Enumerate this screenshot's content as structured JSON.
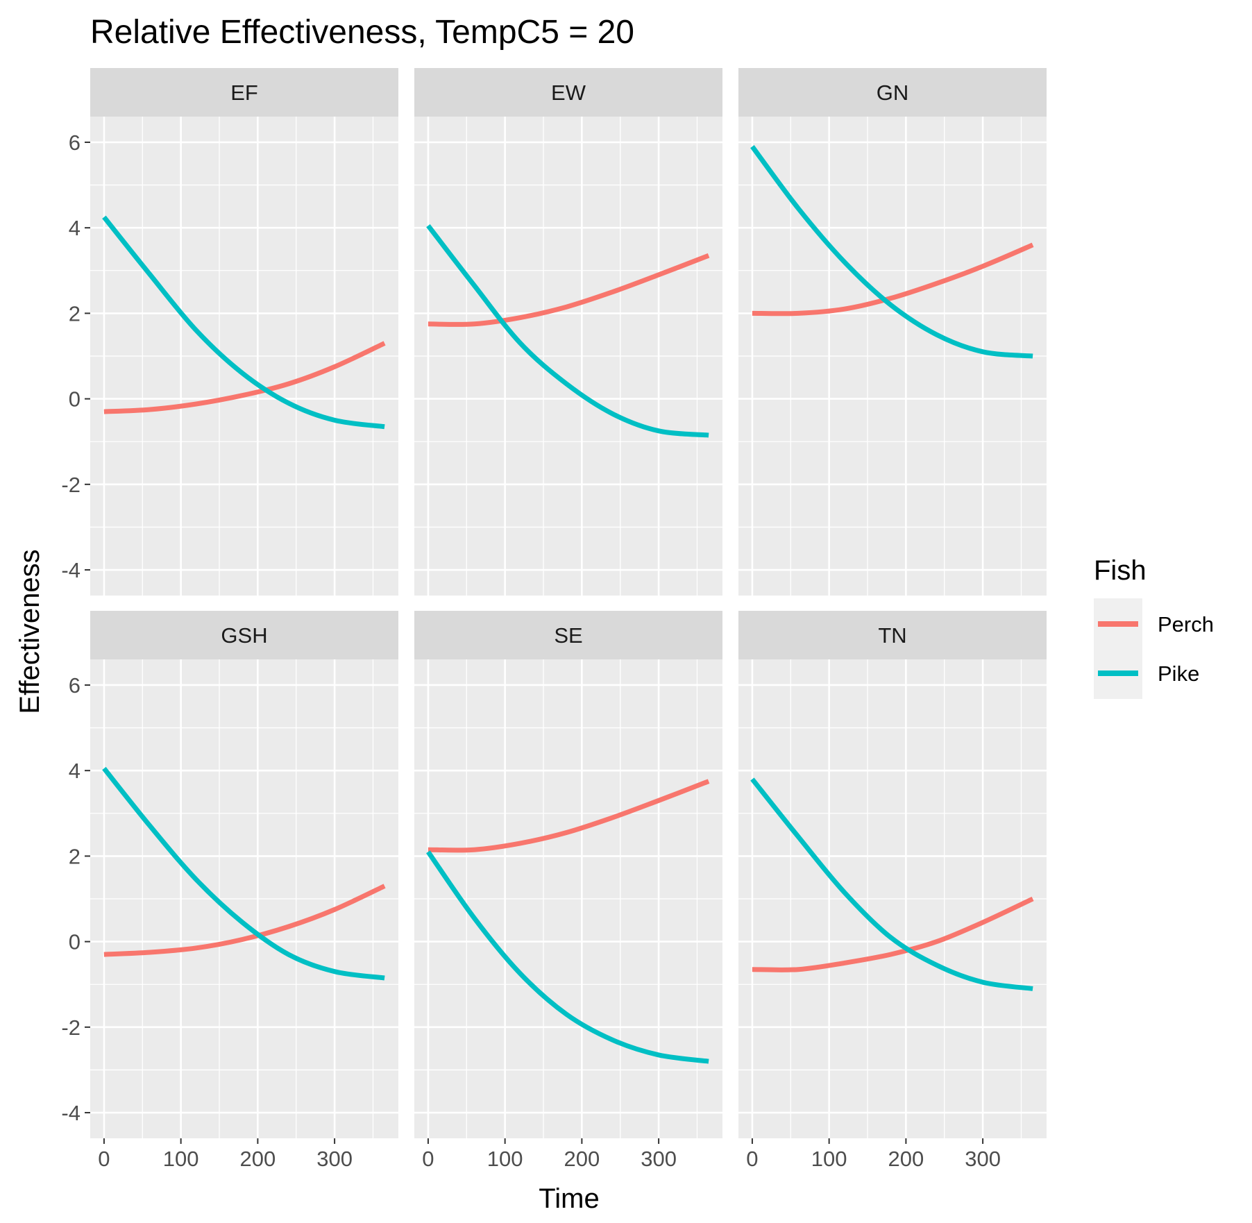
{
  "chart_data": {
    "type": "line",
    "title": "Relative Effectiveness, TempC5 = 20",
    "xlabel": "Time",
    "ylabel": "Effectiveness",
    "xlim": [
      -18,
      383
    ],
    "ylim": [
      -4.6,
      6.6
    ],
    "x_ticks": [
      0,
      100,
      200,
      300
    ],
    "y_ticks": [
      -4,
      -2,
      0,
      2,
      4,
      6
    ],
    "grid": true,
    "legend": {
      "title": "Fish",
      "position": "right",
      "entries": [
        {
          "label": "Perch",
          "color": "#F8766D"
        },
        {
          "label": "Pike",
          "color": "#00BFC4"
        }
      ]
    },
    "colors": {
      "Perch": "#F8766D",
      "Pike": "#00BFC4"
    },
    "panels": [
      {
        "label": "EF",
        "x": [
          0,
          60,
          120,
          180,
          240,
          300,
          365
        ],
        "series": [
          {
            "name": "Perch",
            "values": [
              -0.3,
              -0.25,
              -0.12,
              0.08,
              0.35,
              0.75,
              1.3
            ]
          },
          {
            "name": "Pike",
            "values": [
              4.25,
              2.9,
              1.6,
              0.6,
              -0.1,
              -0.5,
              -0.65
            ]
          }
        ]
      },
      {
        "label": "EW",
        "x": [
          0,
          60,
          120,
          180,
          240,
          300,
          365
        ],
        "series": [
          {
            "name": "Perch",
            "values": [
              1.75,
              1.75,
              1.9,
              2.15,
              2.5,
              2.9,
              3.35
            ]
          },
          {
            "name": "Pike",
            "values": [
              4.05,
              2.65,
              1.3,
              0.35,
              -0.35,
              -0.75,
              -0.85
            ]
          }
        ]
      },
      {
        "label": "GN",
        "x": [
          0,
          60,
          120,
          180,
          240,
          300,
          365
        ],
        "series": [
          {
            "name": "Perch",
            "values": [
              2.0,
              2.0,
              2.1,
              2.35,
              2.7,
              3.1,
              3.6
            ]
          },
          {
            "name": "Pike",
            "values": [
              5.9,
              4.45,
              3.2,
              2.2,
              1.5,
              1.1,
              1.0
            ]
          }
        ]
      },
      {
        "label": "GSH",
        "x": [
          0,
          60,
          120,
          180,
          240,
          300,
          365
        ],
        "series": [
          {
            "name": "Perch",
            "values": [
              -0.3,
              -0.25,
              -0.15,
              0.05,
              0.35,
              0.75,
              1.3
            ]
          },
          {
            "name": "Pike",
            "values": [
              4.05,
              2.7,
              1.45,
              0.45,
              -0.3,
              -0.7,
              -0.85
            ]
          }
        ]
      },
      {
        "label": "SE",
        "x": [
          0,
          60,
          120,
          180,
          240,
          300,
          365
        ],
        "series": [
          {
            "name": "Perch",
            "values": [
              2.15,
              2.15,
              2.3,
              2.55,
              2.9,
              3.3,
              3.75
            ]
          },
          {
            "name": "Pike",
            "values": [
              2.1,
              0.55,
              -0.75,
              -1.7,
              -2.3,
              -2.65,
              -2.8
            ]
          }
        ]
      },
      {
        "label": "TN",
        "x": [
          0,
          60,
          120,
          180,
          240,
          300,
          365
        ],
        "series": [
          {
            "name": "Perch",
            "values": [
              -0.65,
              -0.65,
              -0.5,
              -0.3,
              0.0,
              0.45,
              1.0
            ]
          },
          {
            "name": "Pike",
            "values": [
              3.8,
              2.45,
              1.15,
              0.1,
              -0.55,
              -0.95,
              -1.1
            ]
          }
        ]
      }
    ]
  }
}
